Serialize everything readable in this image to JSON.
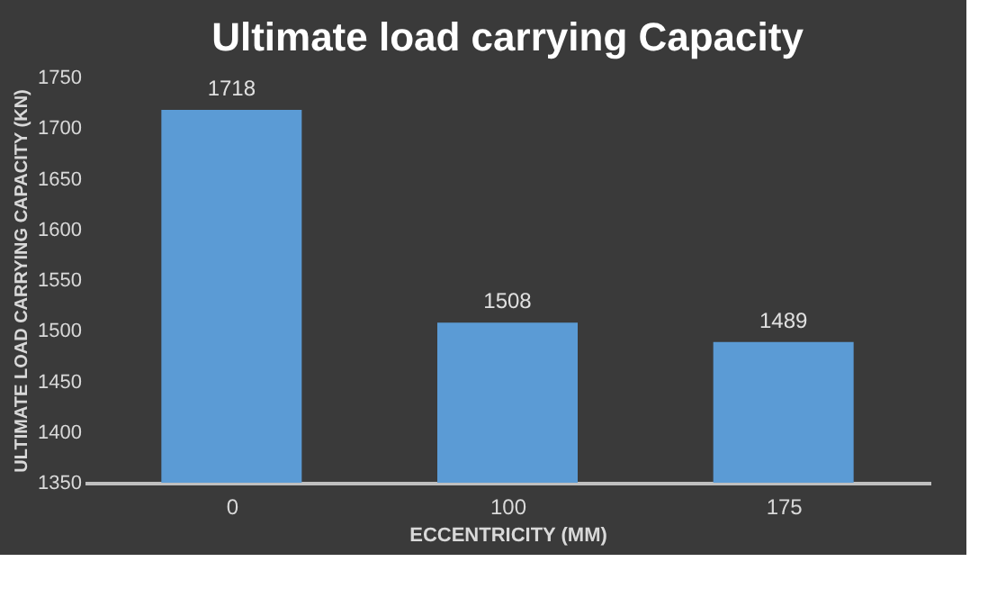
{
  "chart_data": {
    "type": "bar",
    "title": "Ultimate load carrying Capacity",
    "xlabel": "ECCENTRICITY (MM)",
    "ylabel": "ULTIMATE LOAD CARRYING CAPACITY (KN)",
    "categories": [
      "0",
      "100",
      "175"
    ],
    "values": [
      1718,
      1508,
      1489
    ],
    "color": "#5b9bd5",
    "ylim": [
      1350,
      1750
    ],
    "yticks": [
      1350,
      1400,
      1450,
      1500,
      1550,
      1600,
      1650,
      1700,
      1750
    ],
    "grid": false,
    "data_labels": true
  }
}
